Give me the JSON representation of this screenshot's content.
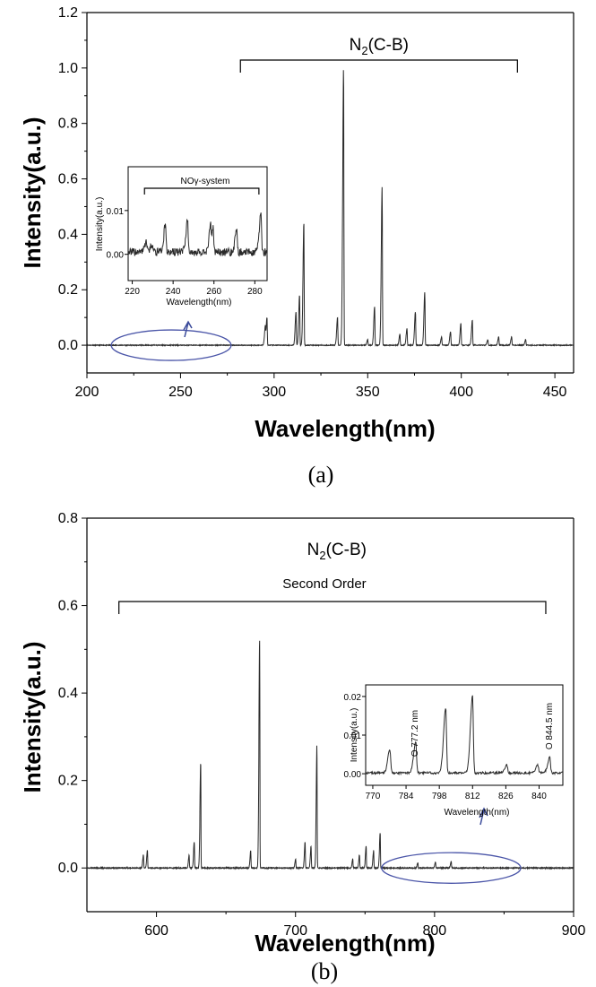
{
  "panels": [
    {
      "id": "a",
      "label": "(a)",
      "annotation_main": "N2(C-B)",
      "annotation_sub": "",
      "chart_data": {
        "type": "line",
        "xlabel": "Wavelength(nm)",
        "ylabel": "Intensity(a.u.)",
        "xlim": [
          200,
          460
        ],
        "ylim": [
          -0.1,
          1.2
        ],
        "xticks": [
          200,
          250,
          300,
          350,
          400,
          450
        ],
        "yticks": [
          0.0,
          0.2,
          0.4,
          0.6,
          0.8,
          1.0,
          1.2
        ],
        "ytick_labels": [
          "0.0",
          "0.2",
          "0.4",
          "0.6",
          "0.8",
          "1.0",
          "1.2"
        ],
        "bracket_x": [
          282,
          430
        ],
        "ellipse": {
          "cx": 245,
          "cy": 0.0,
          "rx": 32,
          "ry": 0.055
        },
        "peaks": [
          [
            295.3,
            0.06
          ],
          [
            296.2,
            0.1
          ],
          [
            311.7,
            0.12
          ],
          [
            313.6,
            0.18
          ],
          [
            315.9,
            0.44
          ],
          [
            333.9,
            0.1
          ],
          [
            337.1,
            1.0
          ],
          [
            350.0,
            0.02
          ],
          [
            353.7,
            0.14
          ],
          [
            357.7,
            0.57
          ],
          [
            367.2,
            0.04
          ],
          [
            371.0,
            0.06
          ],
          [
            375.5,
            0.12
          ],
          [
            380.5,
            0.19
          ],
          [
            389.5,
            0.03
          ],
          [
            394.3,
            0.05
          ],
          [
            399.8,
            0.08
          ],
          [
            405.9,
            0.09
          ],
          [
            414.2,
            0.02
          ],
          [
            420.0,
            0.03
          ],
          [
            426.9,
            0.03
          ],
          [
            434.4,
            0.02
          ]
        ],
        "inset": {
          "title": "NOγ-system",
          "xlabel": "Wavelength(nm)",
          "ylabel": "Intensity(a.u.)",
          "xlim": [
            218,
            286
          ],
          "ylim": [
            -0.006,
            0.02
          ],
          "xticks": [
            220,
            240,
            260,
            280
          ],
          "yticks": [
            0.0,
            0.01
          ],
          "ytick_labels": [
            "0.00",
            "0.01"
          ],
          "bracket_x": [
            226,
            282
          ],
          "peaks": [
            [
              226.9,
              0.0025
            ],
            [
              230.0,
              0.002
            ],
            [
              236.3,
              0.0065
            ],
            [
              247.1,
              0.0075
            ],
            [
              258.3,
              0.005
            ],
            [
              259.6,
              0.0055
            ],
            [
              271.1,
              0.005
            ],
            [
              283.0,
              0.009
            ]
          ]
        }
      }
    },
    {
      "id": "b",
      "label": "(b)",
      "annotation_main": "N2(C-B)",
      "annotation_sub": "Second Order",
      "chart_data": {
        "type": "line",
        "xlabel": "Wavelength(nm)",
        "ylabel": "Intensity(a.u.)",
        "xlim": [
          550,
          900
        ],
        "ylim": [
          -0.1,
          0.8
        ],
        "xticks": [
          600,
          700,
          800,
          900
        ],
        "yticks": [
          0.0,
          0.2,
          0.4,
          0.6,
          0.8
        ],
        "ytick_labels": [
          "0.0",
          "0.2",
          "0.4",
          "0.6",
          "0.8"
        ],
        "bracket_x": [
          573,
          880
        ],
        "ellipse": {
          "cx": 812,
          "cy": 0.0,
          "rx": 50,
          "ry": 0.035
        },
        "peaks": [
          [
            590.6,
            0.03
          ],
          [
            593.5,
            0.04
          ],
          [
            623.5,
            0.03
          ],
          [
            627.2,
            0.06
          ],
          [
            631.8,
            0.24
          ],
          [
            667.8,
            0.04
          ],
          [
            674.2,
            0.52
          ],
          [
            700.1,
            0.02
          ],
          [
            706.9,
            0.06
          ],
          [
            711.2,
            0.05
          ],
          [
            715.4,
            0.28
          ],
          [
            741.2,
            0.02
          ],
          [
            746.0,
            0.03
          ],
          [
            750.8,
            0.05
          ],
          [
            756.2,
            0.04
          ],
          [
            760.9,
            0.08
          ],
          [
            788.0,
            0.012
          ],
          [
            800.7,
            0.014
          ],
          [
            812.0,
            0.015
          ]
        ],
        "inset": {
          "title": "",
          "xlabel": "Wavelength(nm)",
          "ylabel": "Intensity(a.u.)",
          "xlim": [
            767,
            850
          ],
          "ylim": [
            -0.003,
            0.023
          ],
          "xticks": [
            770,
            784,
            798,
            812,
            826,
            840
          ],
          "yticks": [
            0.0,
            0.01,
            0.02
          ],
          "ytick_labels": [
            "0.00",
            "0.01",
            "0.02"
          ],
          "line_label_1": "O 777.2 nm",
          "line_label_2": "O 844.5 nm",
          "peaks": [
            [
              777.2,
              0.006
            ],
            [
              788.1,
              0.008
            ],
            [
              800.7,
              0.017
            ],
            [
              812.0,
              0.02
            ],
            [
              826.5,
              0.002
            ],
            [
              839.5,
              0.002
            ],
            [
              844.5,
              0.004
            ]
          ]
        }
      }
    }
  ]
}
